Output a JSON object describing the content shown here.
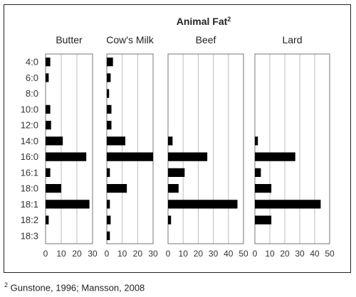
{
  "footnote": {
    "marker": "2",
    "text": "Gunstone, 1996; Mansson, 2008"
  },
  "chart_data": {
    "type": "bar",
    "orientation": "horizontal",
    "title": "Animal Fat",
    "title_superscript": "2",
    "categories": [
      "4:0",
      "6:0",
      "8:0",
      "10:0",
      "12:0",
      "14:0",
      "16:0",
      "16:1",
      "18:0",
      "18:1",
      "18:2",
      "18:3"
    ],
    "grid": true,
    "colors": {
      "bar": "#000000",
      "grid": "#bdbdbd",
      "border": "#777777"
    },
    "panels": [
      {
        "name": "Butter",
        "xlim": [
          0,
          30
        ],
        "xticks": [
          0,
          10,
          20,
          30
        ],
        "values": [
          3,
          2,
          0,
          3,
          3.5,
          11,
          26,
          3,
          10,
          28,
          2,
          0
        ]
      },
      {
        "name": "Cow's Milk",
        "xlim": [
          0,
          30
        ],
        "xticks": [
          0,
          10,
          20,
          30
        ],
        "values": [
          4,
          2.5,
          1.5,
          3,
          3,
          12,
          31,
          2,
          13,
          2,
          2.5,
          2
        ]
      },
      {
        "name": "Beef",
        "xlim": [
          0,
          50
        ],
        "xticks": [
          0,
          10,
          20,
          30,
          40,
          50
        ],
        "values": [
          0,
          0,
          0,
          0,
          0,
          3,
          26,
          11,
          7,
          46,
          2,
          0
        ]
      },
      {
        "name": "Lard",
        "xlim": [
          0,
          50
        ],
        "xticks": [
          0,
          10,
          20,
          30,
          40,
          50
        ],
        "values": [
          0,
          0,
          0,
          0,
          0,
          2,
          27,
          4,
          11,
          44,
          11,
          0
        ]
      }
    ]
  }
}
